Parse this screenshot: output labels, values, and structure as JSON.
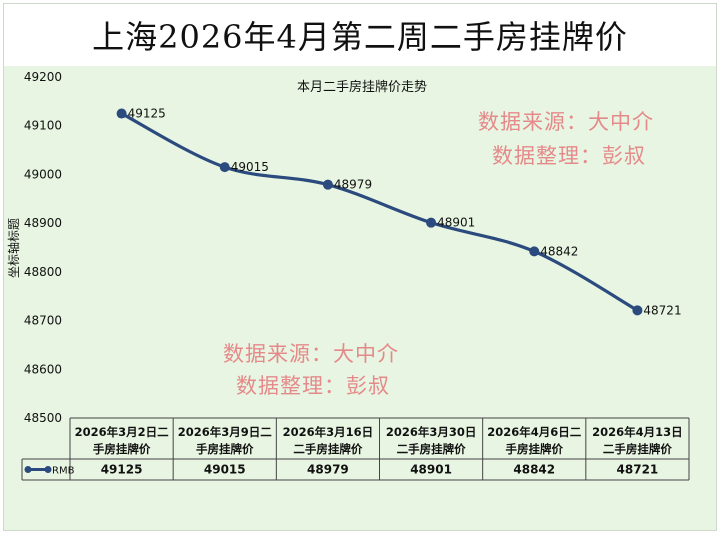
{
  "banner": {
    "title": "上海2026年4月第二周二手房挂牌价"
  },
  "watermarks": {
    "top": [
      "数据来源：大中介",
      "数据整理：彭叔"
    ],
    "bottom": [
      "数据来源：大中介",
      "数据整理：彭叔"
    ]
  },
  "chart_data": {
    "type": "line",
    "title": "本月二手房挂牌价走势",
    "ylabel": "坐标轴标题",
    "xlabel": "",
    "ylim": [
      48500,
      49200
    ],
    "yticks": [
      48500,
      48600,
      48700,
      48800,
      48900,
      49000,
      49100,
      49200
    ],
    "categories": [
      "2026年3月2日二手房挂牌价",
      "2026年3月9日二手房挂牌价",
      "2026年3月16日二手房挂牌价",
      "2026年3月30日二手房挂牌价",
      "2026年4月6日二手房挂牌价",
      "2026年4月13日二手房挂牌价"
    ],
    "category_lines": [
      [
        "2026年3月2日二",
        "手房挂牌价"
      ],
      [
        "2026年3月9日二",
        "手房挂牌价"
      ],
      [
        "2026年3月16日",
        "二手房挂牌价"
      ],
      [
        "2026年3月30日",
        "二手房挂牌价"
      ],
      [
        "2026年4月6日二",
        "手房挂牌价"
      ],
      [
        "2026年4月13日",
        "二手房挂牌价"
      ]
    ],
    "series": [
      {
        "name": "RMB",
        "values": [
          49125,
          49015,
          48979,
          48901,
          48842,
          48721
        ],
        "color": "#2b4a7e"
      }
    ],
    "grid": false,
    "legend": "data-table"
  }
}
